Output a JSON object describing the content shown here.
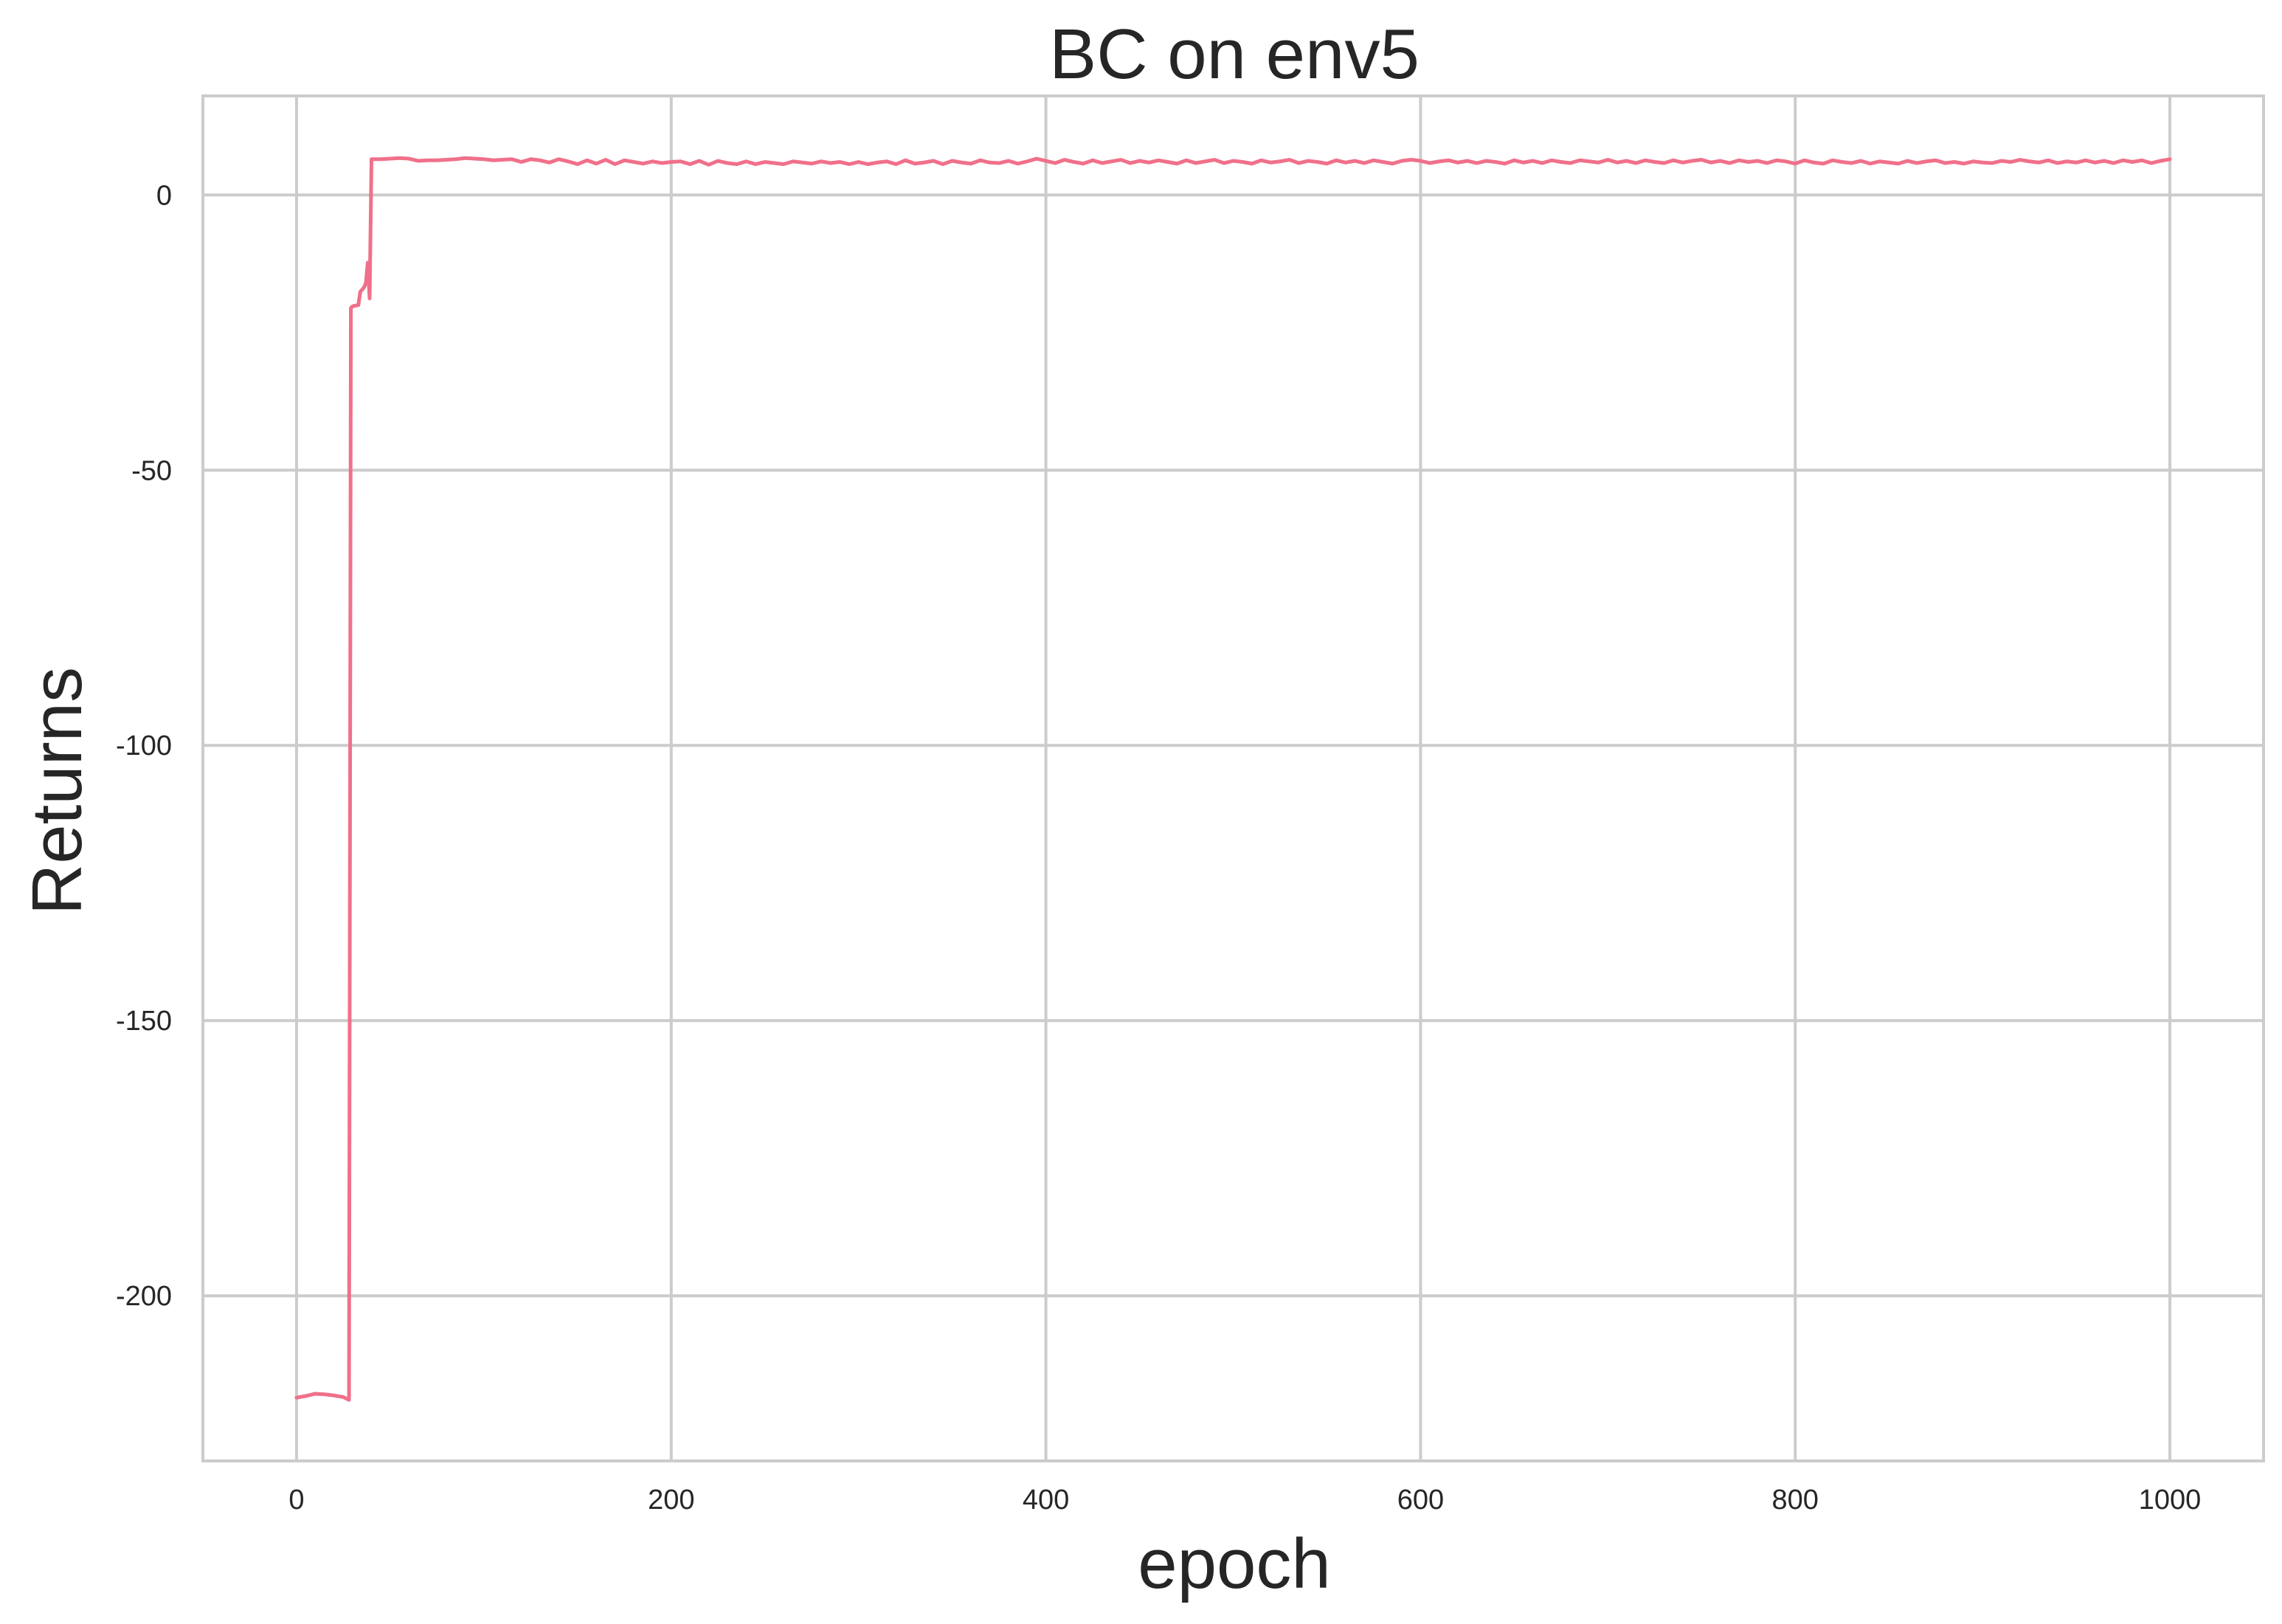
{
  "chart_data": {
    "type": "line",
    "title": "BC on env5",
    "xlabel": "epoch",
    "ylabel": "Returns",
    "xlim": [
      -50,
      1050
    ],
    "ylim": [
      -230,
      18
    ],
    "xticks": [
      0,
      200,
      400,
      600,
      800,
      1000
    ],
    "xtick_labels": [
      "0",
      "200",
      "400",
      "600",
      "800",
      "1000"
    ],
    "yticks": [
      0,
      -50,
      -100,
      -150,
      -200
    ],
    "ytick_labels": [
      "0",
      "-50",
      "-100",
      "-150",
      "-200"
    ],
    "grid": true,
    "legend": "none",
    "colors": {
      "line": "#f0708a",
      "grid": "#cccccc",
      "text": "#262626",
      "background": "#ffffff"
    },
    "series": [
      {
        "points": [
          [
            0,
            -218.5
          ],
          [
            5,
            -218.2
          ],
          [
            10,
            -217.8
          ],
          [
            15,
            -217.9
          ],
          [
            20,
            -218.1
          ],
          [
            25,
            -218.4
          ],
          [
            28,
            -218.9
          ],
          [
            29,
            -20.5
          ],
          [
            30,
            -20.2
          ],
          [
            33,
            -20.0
          ],
          [
            34,
            -17.6
          ],
          [
            36,
            -16.8
          ],
          [
            37,
            -16.0
          ],
          [
            38,
            -12.3
          ],
          [
            39,
            -18.8
          ],
          [
            40,
            6.5
          ],
          [
            45,
            6.5
          ],
          [
            50,
            6.6
          ],
          [
            55,
            6.7
          ],
          [
            60,
            6.6
          ],
          [
            65,
            6.2
          ],
          [
            70,
            6.3
          ],
          [
            75,
            6.3
          ],
          [
            80,
            6.4
          ],
          [
            85,
            6.5
          ],
          [
            90,
            6.7
          ],
          [
            95,
            6.6
          ],
          [
            100,
            6.5
          ],
          [
            105,
            6.3
          ],
          [
            110,
            6.4
          ],
          [
            115,
            6.5
          ],
          [
            120,
            6.0
          ],
          [
            125,
            6.5
          ],
          [
            130,
            6.3
          ],
          [
            135,
            5.9
          ],
          [
            140,
            6.5
          ],
          [
            145,
            6.1
          ],
          [
            150,
            5.6
          ],
          [
            155,
            6.3
          ],
          [
            160,
            5.7
          ],
          [
            165,
            6.4
          ],
          [
            170,
            5.6
          ],
          [
            175,
            6.3
          ],
          [
            180,
            6.0
          ],
          [
            185,
            5.7
          ],
          [
            190,
            6.1
          ],
          [
            195,
            5.8
          ],
          [
            200,
            6.0
          ],
          [
            205,
            6.1
          ],
          [
            210,
            5.6
          ],
          [
            215,
            6.2
          ],
          [
            220,
            5.5
          ],
          [
            225,
            6.2
          ],
          [
            230,
            5.8
          ],
          [
            235,
            5.6
          ],
          [
            240,
            6.1
          ],
          [
            245,
            5.6
          ],
          [
            250,
            6.0
          ],
          [
            255,
            5.8
          ],
          [
            260,
            5.6
          ],
          [
            265,
            6.1
          ],
          [
            270,
            5.9
          ],
          [
            275,
            5.7
          ],
          [
            280,
            6.1
          ],
          [
            285,
            5.8
          ],
          [
            290,
            6.0
          ],
          [
            295,
            5.6
          ],
          [
            300,
            6.0
          ],
          [
            305,
            5.6
          ],
          [
            310,
            5.9
          ],
          [
            315,
            6.1
          ],
          [
            320,
            5.6
          ],
          [
            325,
            6.3
          ],
          [
            330,
            5.7
          ],
          [
            335,
            5.9
          ],
          [
            340,
            6.2
          ],
          [
            345,
            5.6
          ],
          [
            350,
            6.2
          ],
          [
            355,
            5.9
          ],
          [
            360,
            5.7
          ],
          [
            365,
            6.3
          ],
          [
            370,
            5.9
          ],
          [
            375,
            5.8
          ],
          [
            380,
            6.2
          ],
          [
            385,
            5.7
          ],
          [
            390,
            6.1
          ],
          [
            395,
            6.6
          ],
          [
            400,
            6.2
          ],
          [
            405,
            5.8
          ],
          [
            410,
            6.4
          ],
          [
            415,
            6.0
          ],
          [
            420,
            5.7
          ],
          [
            425,
            6.3
          ],
          [
            430,
            5.8
          ],
          [
            435,
            6.1
          ],
          [
            440,
            6.4
          ],
          [
            445,
            5.8
          ],
          [
            450,
            6.2
          ],
          [
            455,
            5.9
          ],
          [
            460,
            6.3
          ],
          [
            465,
            6.0
          ],
          [
            470,
            5.7
          ],
          [
            475,
            6.3
          ],
          [
            480,
            5.8
          ],
          [
            485,
            6.1
          ],
          [
            490,
            6.4
          ],
          [
            495,
            5.8
          ],
          [
            500,
            6.2
          ],
          [
            505,
            6.0
          ],
          [
            510,
            5.7
          ],
          [
            515,
            6.3
          ],
          [
            520,
            5.9
          ],
          [
            525,
            6.1
          ],
          [
            530,
            6.4
          ],
          [
            535,
            5.8
          ],
          [
            540,
            6.2
          ],
          [
            545,
            6.0
          ],
          [
            550,
            5.7
          ],
          [
            555,
            6.3
          ],
          [
            560,
            5.9
          ],
          [
            565,
            6.2
          ],
          [
            570,
            5.8
          ],
          [
            575,
            6.3
          ],
          [
            580,
            6.0
          ],
          [
            585,
            5.7
          ],
          [
            590,
            6.2
          ],
          [
            595,
            6.4
          ],
          [
            600,
            6.2
          ],
          [
            605,
            5.8
          ],
          [
            610,
            6.1
          ],
          [
            615,
            6.3
          ],
          [
            620,
            5.9
          ],
          [
            625,
            6.2
          ],
          [
            630,
            5.8
          ],
          [
            635,
            6.2
          ],
          [
            640,
            6.0
          ],
          [
            645,
            5.7
          ],
          [
            650,
            6.3
          ],
          [
            655,
            5.9
          ],
          [
            660,
            6.2
          ],
          [
            665,
            5.8
          ],
          [
            670,
            6.3
          ],
          [
            675,
            6.0
          ],
          [
            680,
            5.8
          ],
          [
            685,
            6.3
          ],
          [
            690,
            6.1
          ],
          [
            695,
            5.9
          ],
          [
            700,
            6.4
          ],
          [
            705,
            5.9
          ],
          [
            710,
            6.2
          ],
          [
            715,
            5.8
          ],
          [
            720,
            6.3
          ],
          [
            725,
            6.0
          ],
          [
            730,
            5.8
          ],
          [
            735,
            6.3
          ],
          [
            740,
            5.9
          ],
          [
            745,
            6.2
          ],
          [
            750,
            6.4
          ],
          [
            755,
            5.9
          ],
          [
            760,
            6.2
          ],
          [
            765,
            5.8
          ],
          [
            770,
            6.3
          ],
          [
            775,
            6.0
          ],
          [
            780,
            6.2
          ],
          [
            785,
            5.8
          ],
          [
            790,
            6.3
          ],
          [
            795,
            6.1
          ],
          [
            800,
            5.7
          ],
          [
            805,
            6.3
          ],
          [
            810,
            5.9
          ],
          [
            815,
            5.7
          ],
          [
            820,
            6.3
          ],
          [
            825,
            6.0
          ],
          [
            830,
            5.8
          ],
          [
            835,
            6.2
          ],
          [
            840,
            5.7
          ],
          [
            845,
            6.1
          ],
          [
            850,
            5.9
          ],
          [
            855,
            5.7
          ],
          [
            860,
            6.2
          ],
          [
            865,
            5.8
          ],
          [
            870,
            6.1
          ],
          [
            875,
            6.3
          ],
          [
            880,
            5.8
          ],
          [
            885,
            6.0
          ],
          [
            890,
            5.7
          ],
          [
            895,
            6.1
          ],
          [
            900,
            5.9
          ],
          [
            905,
            5.8
          ],
          [
            910,
            6.2
          ],
          [
            915,
            6.0
          ],
          [
            920,
            6.4
          ],
          [
            925,
            6.1
          ],
          [
            930,
            5.9
          ],
          [
            935,
            6.3
          ],
          [
            940,
            5.8
          ],
          [
            945,
            6.1
          ],
          [
            950,
            5.9
          ],
          [
            955,
            6.3
          ],
          [
            960,
            5.9
          ],
          [
            965,
            6.2
          ],
          [
            970,
            5.8
          ],
          [
            975,
            6.3
          ],
          [
            980,
            6.0
          ],
          [
            985,
            6.3
          ],
          [
            990,
            5.8
          ],
          [
            995,
            6.2
          ],
          [
            1000,
            6.5
          ]
        ]
      }
    ]
  }
}
